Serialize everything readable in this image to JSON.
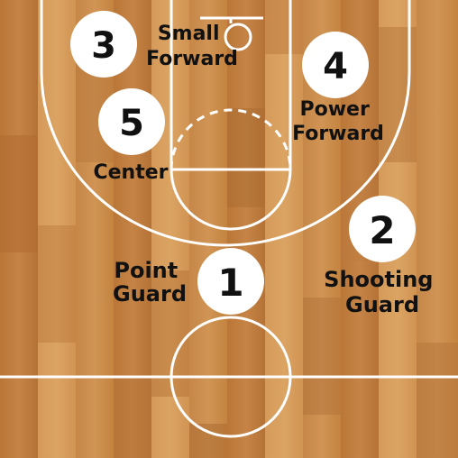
{
  "court": {
    "floor_color": "#c98a4c",
    "line_color": "#ffffff"
  },
  "players": [
    {
      "number": "1",
      "name_lines": [
        "Point",
        "Guard"
      ]
    },
    {
      "number": "2",
      "name_lines": [
        "Shooting",
        "Guard"
      ]
    },
    {
      "number": "3",
      "name_lines": [
        "Small",
        "Forward"
      ]
    },
    {
      "number": "4",
      "name_lines": [
        "Power",
        "Forward"
      ]
    },
    {
      "number": "5",
      "name_lines": [
        "Center"
      ]
    }
  ]
}
